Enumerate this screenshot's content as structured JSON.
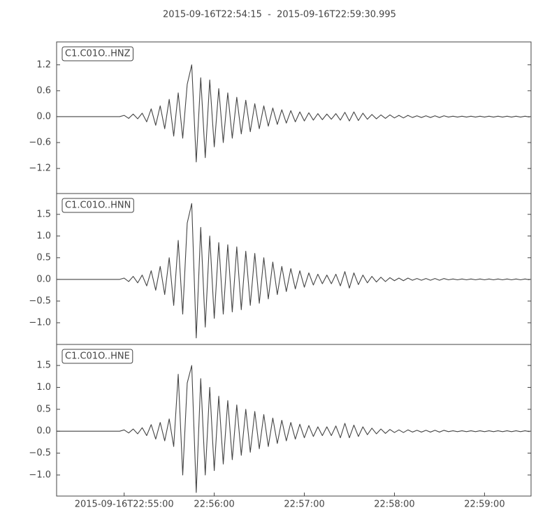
{
  "chart_data": [
    {
      "type": "line",
      "title": "2015-09-16T22:54:15  -  2015-09-16T22:59:30.995",
      "xlim": [
        "2015-09-16T22:54:15",
        "2015-09-16T22:59:30.995"
      ],
      "ylim": [
        -1.78,
        1.73
      ],
      "yticks": [
        {
          "value": -1.2,
          "label": "−1.2"
        },
        {
          "value": -0.6,
          "label": "−0.6"
        },
        {
          "value": 0,
          "label": "0.0"
        },
        {
          "value": 0.6,
          "label": "0.6"
        },
        {
          "value": 1.2,
          "label": "1.2"
        }
      ],
      "x": [
        "22:54:15",
        "22:54:18",
        "22:54:21",
        "22:54:24",
        "22:54:27",
        "22:54:30",
        "22:54:33",
        "22:54:36",
        "22:54:39",
        "22:54:42",
        "22:54:45",
        "22:54:48",
        "22:54:51",
        "22:54:54",
        "22:54:57",
        "22:55:00",
        "22:55:03",
        "22:55:06",
        "22:55:09",
        "22:55:12",
        "22:55:15",
        "22:55:18",
        "22:55:21",
        "22:55:24",
        "22:55:27",
        "22:55:30",
        "22:55:33",
        "22:55:36",
        "22:55:39",
        "22:55:42",
        "22:55:45",
        "22:55:48",
        "22:55:51",
        "22:55:54",
        "22:55:57",
        "22:56:00",
        "22:56:03",
        "22:56:06",
        "22:56:09",
        "22:56:12",
        "22:56:15",
        "22:56:18",
        "22:56:21",
        "22:56:24",
        "22:56:27",
        "22:56:30",
        "22:56:33",
        "22:56:36",
        "22:56:39",
        "22:56:42",
        "22:56:45",
        "22:56:48",
        "22:56:51",
        "22:56:54",
        "22:56:57",
        "22:57:00",
        "22:57:03",
        "22:57:06",
        "22:57:09",
        "22:57:12",
        "22:57:15",
        "22:57:18",
        "22:57:21",
        "22:57:24",
        "22:57:27",
        "22:57:30",
        "22:57:33",
        "22:57:36",
        "22:57:39",
        "22:57:42",
        "22:57:45",
        "22:57:48",
        "22:57:51",
        "22:57:54",
        "22:57:57",
        "22:58:00",
        "22:58:03",
        "22:58:06",
        "22:58:09",
        "22:58:12",
        "22:58:15",
        "22:58:18",
        "22:58:21",
        "22:58:24",
        "22:58:27",
        "22:58:30",
        "22:58:33",
        "22:58:36",
        "22:58:39",
        "22:58:42",
        "22:58:45",
        "22:58:48",
        "22:58:51",
        "22:58:54",
        "22:58:57",
        "22:59:00",
        "22:59:03",
        "22:59:06",
        "22:59:09",
        "22:59:12",
        "22:59:15",
        "22:59:18",
        "22:59:21",
        "22:59:24",
        "22:59:27",
        "22:59:30"
      ],
      "series": [
        {
          "name": "C1.C01O..HNZ",
          "color": "#444444",
          "values": [
            0,
            0,
            0,
            0,
            0,
            0,
            0,
            0,
            0,
            0,
            0,
            0,
            0,
            0,
            0,
            0.03,
            -0.04,
            0.06,
            -0.05,
            0.08,
            -0.12,
            0.18,
            -0.2,
            0.25,
            -0.28,
            0.4,
            -0.45,
            0.55,
            -0.5,
            0.75,
            1.2,
            -1.05,
            0.9,
            -0.95,
            0.85,
            -0.7,
            0.65,
            -0.6,
            0.55,
            -0.5,
            0.45,
            -0.4,
            0.38,
            -0.35,
            0.3,
            -0.28,
            0.25,
            -0.22,
            0.2,
            -0.18,
            0.16,
            -0.15,
            0.14,
            -0.12,
            0.11,
            -0.1,
            0.09,
            -0.08,
            0.07,
            -0.07,
            0.06,
            -0.06,
            0.07,
            -0.08,
            0.1,
            -0.1,
            0.11,
            -0.09,
            0.08,
            -0.06,
            0.05,
            -0.05,
            0.04,
            -0.04,
            0.04,
            -0.03,
            0.03,
            -0.03,
            0.03,
            -0.02,
            0.02,
            -0.02,
            0.02,
            -0.02,
            0.02,
            -0.02,
            0.02,
            -0.01,
            0.01,
            -0.01,
            0.01,
            -0.01,
            0.01,
            -0.01,
            0.01,
            -0.01,
            0.01,
            -0.01,
            0.01,
            -0.01,
            0.01,
            -0.01,
            0.01,
            -0.01,
            0.01,
            -0.01
          ]
        }
      ]
    },
    {
      "type": "line",
      "xlim": [
        "2015-09-16T22:54:15",
        "2015-09-16T22:59:30.995"
      ],
      "ylim": [
        -1.5,
        1.98
      ],
      "yticks": [
        {
          "value": -1.0,
          "label": "−1.0"
        },
        {
          "value": -0.5,
          "label": "−0.5"
        },
        {
          "value": 0,
          "label": "0.0"
        },
        {
          "value": 0.5,
          "label": "0.5"
        },
        {
          "value": 1.0,
          "label": "1.0"
        },
        {
          "value": 1.5,
          "label": "1.5"
        }
      ],
      "x": [
        "22:54:15",
        "22:54:18",
        "22:54:21",
        "22:54:24",
        "22:54:27",
        "22:54:30",
        "22:54:33",
        "22:54:36",
        "22:54:39",
        "22:54:42",
        "22:54:45",
        "22:54:48",
        "22:54:51",
        "22:54:54",
        "22:54:57",
        "22:55:00",
        "22:55:03",
        "22:55:06",
        "22:55:09",
        "22:55:12",
        "22:55:15",
        "22:55:18",
        "22:55:21",
        "22:55:24",
        "22:55:27",
        "22:55:30",
        "22:55:33",
        "22:55:36",
        "22:55:39",
        "22:55:42",
        "22:55:45",
        "22:55:48",
        "22:55:51",
        "22:55:54",
        "22:55:57",
        "22:56:00",
        "22:56:03",
        "22:56:06",
        "22:56:09",
        "22:56:12",
        "22:56:15",
        "22:56:18",
        "22:56:21",
        "22:56:24",
        "22:56:27",
        "22:56:30",
        "22:56:33",
        "22:56:36",
        "22:56:39",
        "22:56:42",
        "22:56:45",
        "22:56:48",
        "22:56:51",
        "22:56:54",
        "22:56:57",
        "22:57:00",
        "22:57:03",
        "22:57:06",
        "22:57:09",
        "22:57:12",
        "22:57:15",
        "22:57:18",
        "22:57:21",
        "22:57:24",
        "22:57:27",
        "22:57:30",
        "22:57:33",
        "22:57:36",
        "22:57:39",
        "22:57:42",
        "22:57:45",
        "22:57:48",
        "22:57:51",
        "22:57:54",
        "22:57:57",
        "22:58:00",
        "22:58:03",
        "22:58:06",
        "22:58:09",
        "22:58:12",
        "22:58:15",
        "22:58:18",
        "22:58:21",
        "22:58:24",
        "22:58:27",
        "22:58:30",
        "22:58:33",
        "22:58:36",
        "22:58:39",
        "22:58:42",
        "22:58:45",
        "22:58:48",
        "22:58:51",
        "22:58:54",
        "22:58:57",
        "22:59:00",
        "22:59:03",
        "22:59:06",
        "22:59:09",
        "22:59:12",
        "22:59:15",
        "22:59:18",
        "22:59:21",
        "22:59:24",
        "22:59:27",
        "22:59:30"
      ],
      "series": [
        {
          "name": "C1.C01O..HNN",
          "color": "#444444",
          "values": [
            0,
            0,
            0,
            0,
            0,
            0,
            0,
            0,
            0,
            0,
            0,
            0,
            0,
            0,
            0,
            0.03,
            -0.05,
            0.07,
            -0.08,
            0.1,
            -0.15,
            0.2,
            -0.25,
            0.3,
            -0.35,
            0.5,
            -0.6,
            0.9,
            -0.8,
            1.3,
            1.75,
            -1.35,
            1.2,
            -1.1,
            1.0,
            -0.9,
            0.85,
            -0.8,
            0.8,
            -0.75,
            0.75,
            -0.7,
            0.65,
            -0.6,
            0.6,
            -0.55,
            0.5,
            -0.45,
            0.4,
            -0.35,
            0.3,
            -0.28,
            0.25,
            -0.22,
            0.2,
            -0.18,
            0.15,
            -0.13,
            0.12,
            -0.1,
            0.1,
            -0.1,
            0.12,
            -0.15,
            0.18,
            -0.2,
            0.15,
            -0.12,
            0.1,
            -0.08,
            0.07,
            -0.06,
            0.05,
            -0.05,
            0.04,
            -0.03,
            0.03,
            -0.03,
            0.03,
            -0.02,
            0.02,
            -0.02,
            0.02,
            -0.02,
            0.02,
            -0.02,
            0.02,
            -0.01,
            0.01,
            -0.01,
            0.01,
            -0.01,
            0.01,
            -0.01,
            0.01,
            -0.01,
            0.01,
            -0.01,
            0.01,
            -0.01,
            0.01,
            -0.01,
            0.01,
            -0.01,
            0.01,
            -0.01
          ]
        }
      ]
    },
    {
      "type": "line",
      "xlim": [
        "2015-09-16T22:54:15",
        "2015-09-16T22:59:30.995"
      ],
      "ylim": [
        -1.48,
        1.98
      ],
      "yticks": [
        {
          "value": -1.0,
          "label": "−1.0"
        },
        {
          "value": -0.5,
          "label": "−0.5"
        },
        {
          "value": 0,
          "label": "0.0"
        },
        {
          "value": 0.5,
          "label": "0.5"
        },
        {
          "value": 1.0,
          "label": "1.0"
        },
        {
          "value": 1.5,
          "label": "1.5"
        }
      ],
      "xticks": [
        {
          "value": "22:55:00",
          "label": "2015-09-16T22:55:00"
        },
        {
          "value": "22:56:00",
          "label": "22:56:00"
        },
        {
          "value": "22:57:00",
          "label": "22:57:00"
        },
        {
          "value": "22:58:00",
          "label": "22:58:00"
        },
        {
          "value": "22:59:00",
          "label": "22:59:00"
        }
      ],
      "x": [
        "22:54:15",
        "22:54:18",
        "22:54:21",
        "22:54:24",
        "22:54:27",
        "22:54:30",
        "22:54:33",
        "22:54:36",
        "22:54:39",
        "22:54:42",
        "22:54:45",
        "22:54:48",
        "22:54:51",
        "22:54:54",
        "22:54:57",
        "22:55:00",
        "22:55:03",
        "22:55:06",
        "22:55:09",
        "22:55:12",
        "22:55:15",
        "22:55:18",
        "22:55:21",
        "22:55:24",
        "22:55:27",
        "22:55:30",
        "22:55:33",
        "22:55:36",
        "22:55:39",
        "22:55:42",
        "22:55:45",
        "22:55:48",
        "22:55:51",
        "22:55:54",
        "22:55:57",
        "22:56:00",
        "22:56:03",
        "22:56:06",
        "22:56:09",
        "22:56:12",
        "22:56:15",
        "22:56:18",
        "22:56:21",
        "22:56:24",
        "22:56:27",
        "22:56:30",
        "22:56:33",
        "22:56:36",
        "22:56:39",
        "22:56:42",
        "22:56:45",
        "22:56:48",
        "22:56:51",
        "22:56:54",
        "22:56:57",
        "22:57:00",
        "22:57:03",
        "22:57:06",
        "22:57:09",
        "22:57:12",
        "22:57:15",
        "22:57:18",
        "22:57:21",
        "22:57:24",
        "22:57:27",
        "22:57:30",
        "22:57:33",
        "22:57:36",
        "22:57:39",
        "22:57:42",
        "22:57:45",
        "22:57:48",
        "22:57:51",
        "22:57:54",
        "22:57:57",
        "22:58:00",
        "22:58:03",
        "22:58:06",
        "22:58:09",
        "22:58:12",
        "22:58:15",
        "22:58:18",
        "22:58:21",
        "22:58:24",
        "22:58:27",
        "22:58:30",
        "22:58:33",
        "22:58:36",
        "22:58:39",
        "22:58:42",
        "22:58:45",
        "22:58:48",
        "22:58:51",
        "22:58:54",
        "22:58:57",
        "22:59:00",
        "22:59:03",
        "22:59:06",
        "22:59:09",
        "22:59:12",
        "22:59:15",
        "22:59:18",
        "22:59:21",
        "22:59:24",
        "22:59:27",
        "22:59:30"
      ],
      "series": [
        {
          "name": "C1.C01O..HNE",
          "color": "#444444",
          "values": [
            0,
            0,
            0,
            0,
            0,
            0,
            0,
            0,
            0,
            0,
            0,
            0,
            0,
            0,
            0,
            0.03,
            -0.04,
            0.05,
            -0.06,
            0.08,
            -0.1,
            0.15,
            -0.18,
            0.2,
            -0.22,
            0.28,
            -0.35,
            1.3,
            -1.0,
            1.1,
            1.5,
            -1.4,
            1.2,
            -1.0,
            1.0,
            -0.9,
            0.8,
            -0.75,
            0.7,
            -0.65,
            0.6,
            -0.55,
            0.5,
            -0.48,
            0.45,
            -0.4,
            0.38,
            -0.35,
            0.3,
            -0.28,
            0.25,
            -0.22,
            0.2,
            -0.18,
            0.16,
            -0.15,
            0.13,
            -0.12,
            0.1,
            -0.1,
            0.1,
            -0.1,
            0.12,
            -0.15,
            0.18,
            -0.15,
            0.14,
            -0.12,
            0.1,
            -0.08,
            0.07,
            -0.06,
            0.05,
            -0.05,
            0.04,
            -0.03,
            0.03,
            -0.03,
            0.03,
            -0.02,
            0.02,
            -0.02,
            0.02,
            -0.02,
            0.02,
            -0.02,
            0.02,
            -0.01,
            0.01,
            -0.01,
            0.01,
            -0.01,
            0.01,
            -0.01,
            0.01,
            -0.01,
            0.01,
            -0.01,
            0.01,
            -0.01,
            0.01,
            -0.01,
            0.01,
            -0.01,
            0.01,
            -0.01
          ]
        }
      ]
    }
  ]
}
